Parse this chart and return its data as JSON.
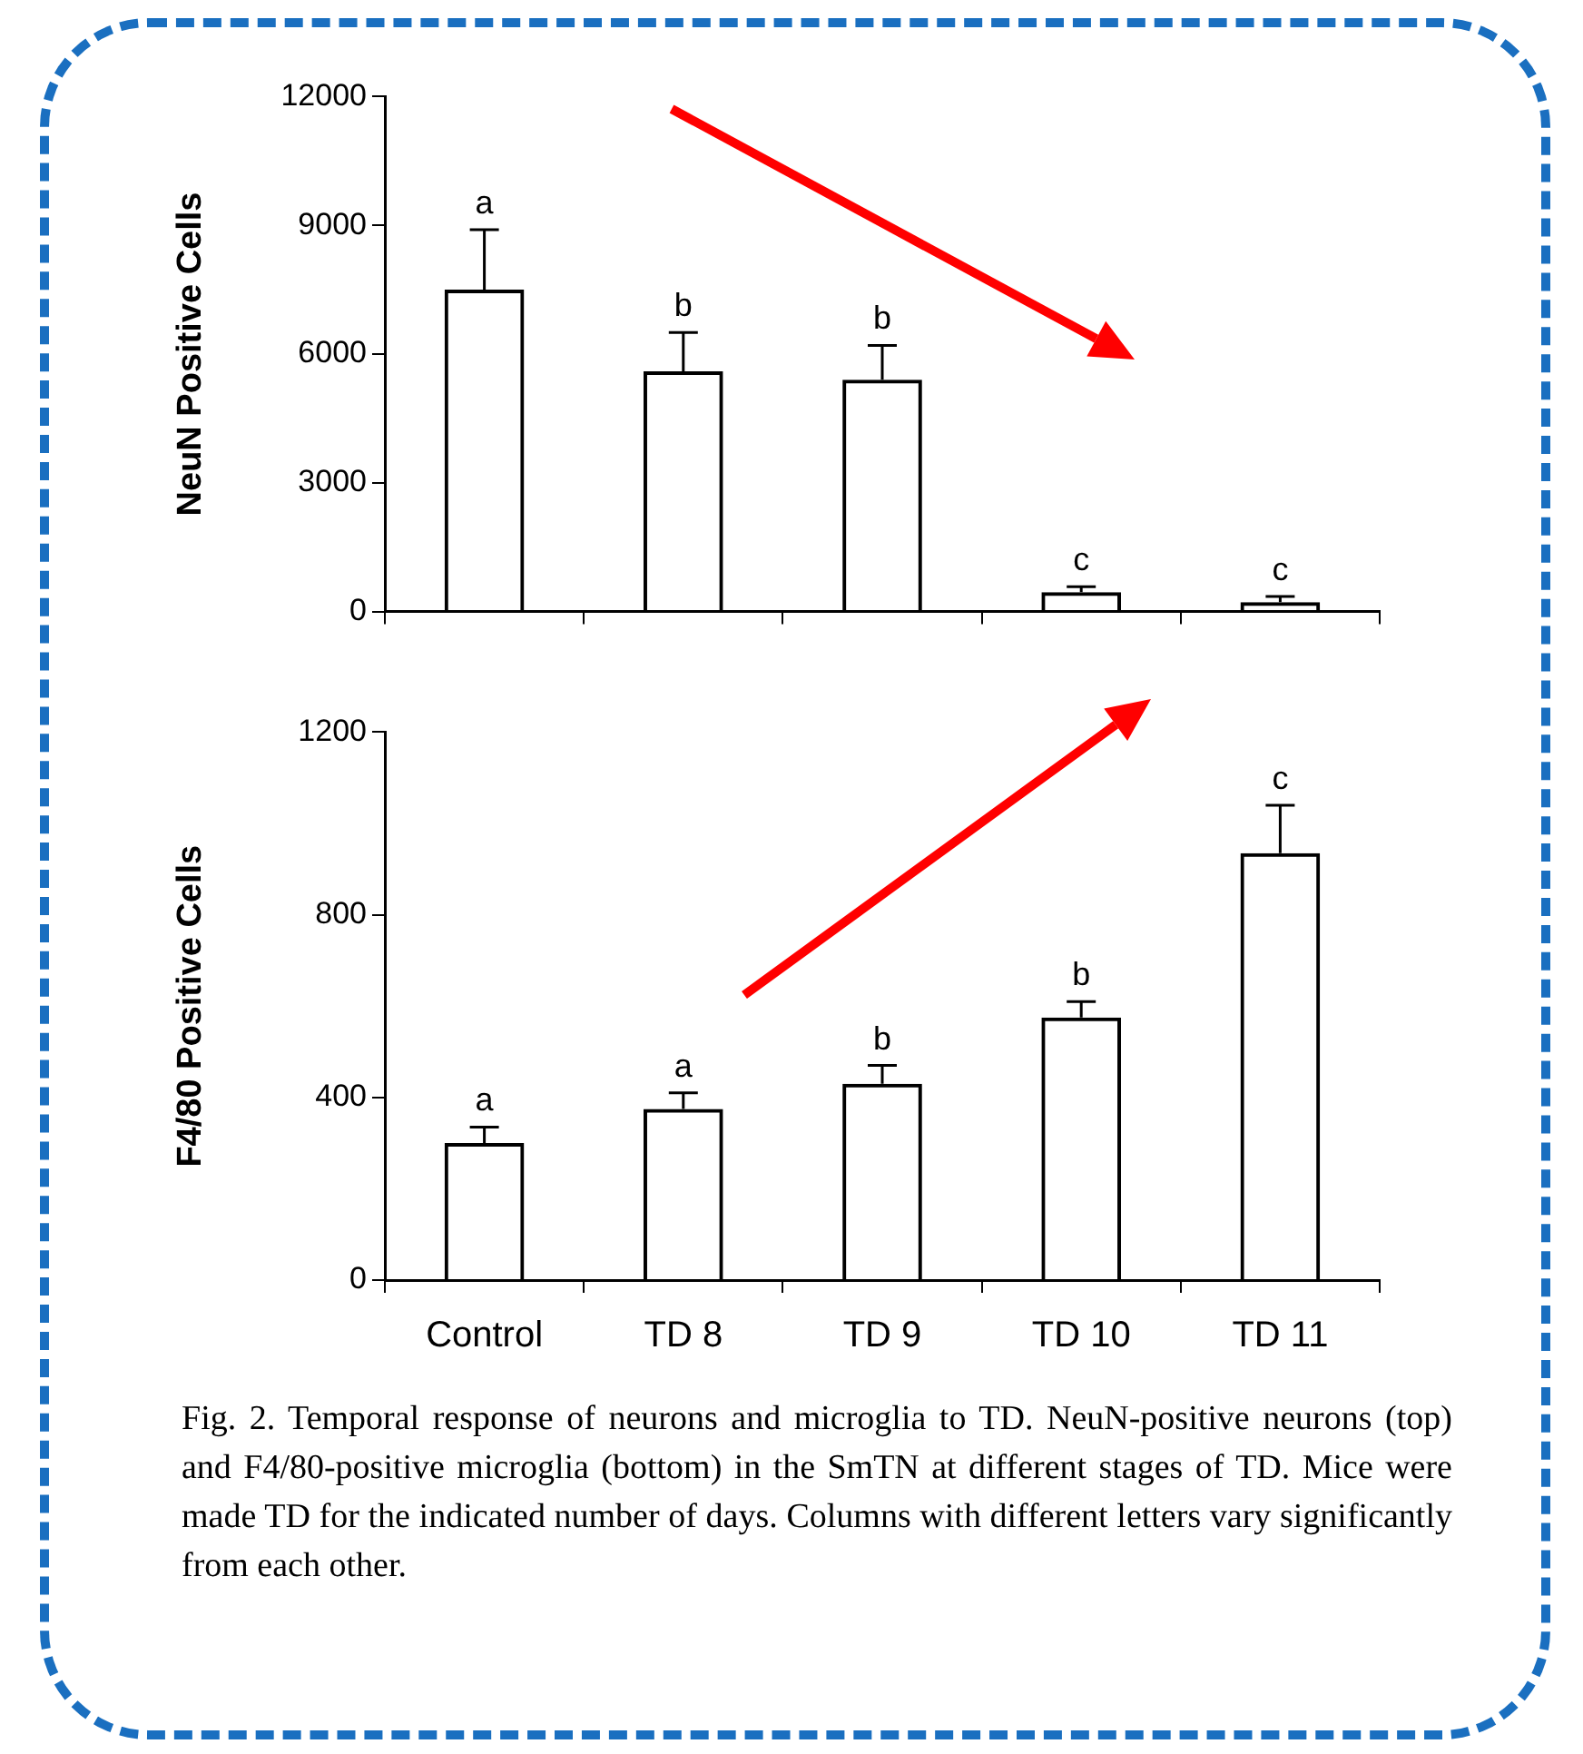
{
  "chart_data": [
    {
      "type": "bar",
      "ylabel": "NeuN Positive Cells",
      "categories": [
        "Control",
        "TD 8",
        "TD 9",
        "TD 10",
        "TD 11"
      ],
      "values": [
        7500,
        5600,
        5400,
        450,
        220
      ],
      "color": "#000000",
      "errors": [
        [
          7500,
          8900
        ],
        [
          5600,
          6500
        ],
        [
          5400,
          6200
        ],
        [
          450,
          580
        ],
        [
          220,
          350
        ]
      ],
      "ylim": [
        0,
        12000
      ],
      "yticks": [
        0,
        3000,
        6000,
        9000,
        12000
      ],
      "tick_labels": "y",
      "annotations": [
        {
          "text": "a",
          "x": "Control",
          "y": 8900
        },
        {
          "text": "b",
          "x": "TD 8",
          "y": 6500
        },
        {
          "text": "b",
          "x": "TD 9",
          "y": 6200
        },
        {
          "text": "c",
          "x": "TD 10",
          "y": 580
        },
        {
          "text": "c",
          "x": "TD 11",
          "y": 350
        }
      ]
    },
    {
      "type": "bar",
      "ylabel": "F4/80 Positive Cells",
      "categories": [
        "Control",
        "TD 8",
        "TD 9",
        "TD 10",
        "TD 11"
      ],
      "values": [
        300,
        375,
        430,
        575,
        935
      ],
      "color": "#000000",
      "errors": [
        [
          300,
          335
        ],
        [
          375,
          410
        ],
        [
          430,
          470
        ],
        [
          575,
          610
        ],
        [
          935,
          1040
        ]
      ],
      "ylim": [
        0,
        1200
      ],
      "yticks": [
        0,
        400,
        800,
        1200
      ],
      "annotations": [
        {
          "text": "a",
          "x": "Control",
          "y": 335
        },
        {
          "text": "a",
          "x": "TD 8",
          "y": 410
        },
        {
          "text": "b",
          "x": "TD 9",
          "y": 470
        },
        {
          "text": "b",
          "x": "TD 10",
          "y": 610
        },
        {
          "text": "c",
          "x": "TD 11",
          "y": 1040
        },
        "Fig. 2. Temporal response of neurons and microglia to TD. NeuN-positive neurons (top) and F4/80-positive microglia (bottom) in the SmTN at different stages of TD. Mice were made TD for the indicated number of days. Columns with different letters vary significantly from each other."
      ]
    }
  ]
}
